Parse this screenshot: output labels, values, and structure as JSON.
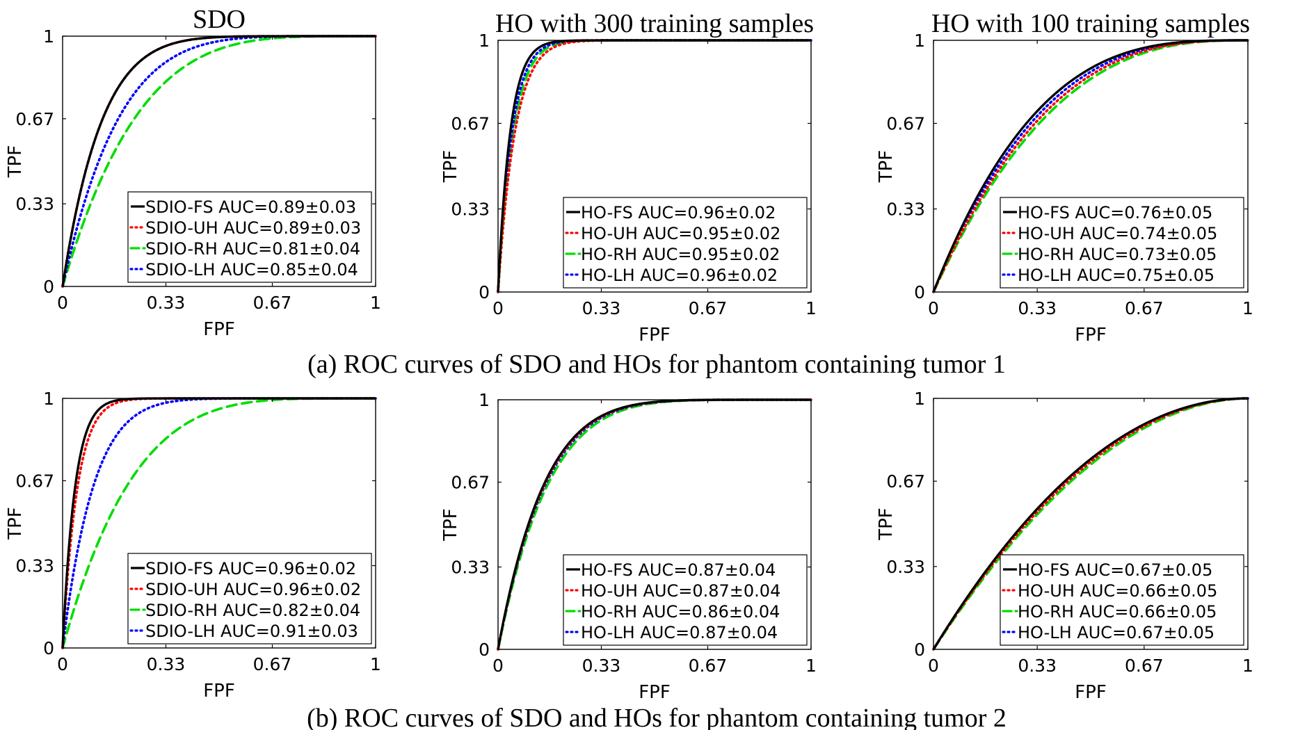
{
  "captions": [
    "(a) ROC curves of SDO and HOs for phantom containing tumor 1",
    "(b) ROC curves of SDO and HOs for phantom containing tumor 2"
  ],
  "series_styles": {
    "FS": {
      "color": "#000000",
      "dash": "none"
    },
    "UH": {
      "color": "#ff0000",
      "dash": "2,5"
    },
    "RH": {
      "color": "#00dd00",
      "dash": "14,8"
    },
    "LH": {
      "color": "#0000ff",
      "dash": "2,5"
    }
  },
  "chart_data": [
    {
      "type": "line",
      "title": "SDO",
      "xlabel": "FPF",
      "ylabel": "TPF",
      "xlim": [
        0,
        1
      ],
      "ylim": [
        0,
        1
      ],
      "xticks": [
        "0",
        "0.33",
        "0.67",
        "1"
      ],
      "yticks": [
        "0",
        "0.33",
        "0.67",
        "1"
      ],
      "legend_position": "bottom-right",
      "grid": false,
      "series": [
        {
          "name": "SDIO-FS AUC=0.89±0.03",
          "style": "FS",
          "auc": 0.89
        },
        {
          "name": "SDIO-UH AUC=0.89±0.03",
          "style": "UH",
          "auc": 0.89
        },
        {
          "name": "SDIO-RH AUC=0.81±0.04",
          "style": "RH",
          "auc": 0.81
        },
        {
          "name": "SDIO-LH AUC=0.85±0.04",
          "style": "LH",
          "auc": 0.85
        }
      ]
    },
    {
      "type": "line",
      "title": "HO with 300 training samples",
      "xlabel": "FPF",
      "ylabel": "TPF",
      "xlim": [
        0,
        1
      ],
      "ylim": [
        0,
        1
      ],
      "xticks": [
        "0",
        "0.33",
        "0.67",
        "1"
      ],
      "yticks": [
        "0",
        "0.33",
        "0.67",
        "1"
      ],
      "legend_position": "bottom-right",
      "grid": false,
      "series": [
        {
          "name": "HO-FS AUC=0.96±0.02",
          "style": "FS",
          "auc": 0.962
        },
        {
          "name": "HO-UH AUC=0.95±0.02",
          "style": "UH",
          "auc": 0.948
        },
        {
          "name": "HO-RH AUC=0.95±0.02",
          "style": "RH",
          "auc": 0.953
        },
        {
          "name": "HO-LH AUC=0.96±0.02",
          "style": "LH",
          "auc": 0.957
        }
      ]
    },
    {
      "type": "line",
      "title": "HO with 100 training samples",
      "xlabel": "FPF",
      "ylabel": "TPF",
      "xlim": [
        0,
        1
      ],
      "ylim": [
        0,
        1
      ],
      "xticks": [
        "0",
        "0.33",
        "0.67",
        "1"
      ],
      "yticks": [
        "0",
        "0.33",
        "0.67",
        "1"
      ],
      "legend_position": "bottom-right",
      "grid": false,
      "series": [
        {
          "name": "HO-FS AUC=0.76±0.05",
          "style": "FS",
          "auc": 0.76
        },
        {
          "name": "HO-UH AUC=0.74±0.05",
          "style": "UH",
          "auc": 0.74
        },
        {
          "name": "HO-RH AUC=0.73±0.05",
          "style": "RH",
          "auc": 0.73
        },
        {
          "name": "HO-LH AUC=0.75±0.05",
          "style": "LH",
          "auc": 0.75
        }
      ]
    },
    {
      "type": "line",
      "title": "",
      "xlabel": "FPF",
      "ylabel": "TPF",
      "xlim": [
        0,
        1
      ],
      "ylim": [
        0,
        1
      ],
      "xticks": [
        "0",
        "0.33",
        "0.67",
        "1"
      ],
      "yticks": [
        "0",
        "0.33",
        "0.67",
        "1"
      ],
      "legend_position": "bottom-right",
      "grid": false,
      "series": [
        {
          "name": "SDIO-FS AUC=0.96±0.02",
          "style": "FS",
          "auc": 0.962
        },
        {
          "name": "SDIO-UH AUC=0.96±0.02",
          "style": "UH",
          "auc": 0.955
        },
        {
          "name": "SDIO-RH AUC=0.82±0.04",
          "style": "RH",
          "auc": 0.82
        },
        {
          "name": "SDIO-LH AUC=0.91±0.03",
          "style": "LH",
          "auc": 0.91
        }
      ]
    },
    {
      "type": "line",
      "title": "",
      "xlabel": "FPF",
      "ylabel": "TPF",
      "xlim": [
        0,
        1
      ],
      "ylim": [
        0,
        1
      ],
      "xticks": [
        "0",
        "0.33",
        "0.67",
        "1"
      ],
      "yticks": [
        "0",
        "0.33",
        "0.67",
        "1"
      ],
      "legend_position": "bottom-right",
      "grid": false,
      "series": [
        {
          "name": "HO-FS AUC=0.87±0.04",
          "style": "FS",
          "auc": 0.872
        },
        {
          "name": "HO-UH AUC=0.87±0.04",
          "style": "UH",
          "auc": 0.87
        },
        {
          "name": "HO-RH AUC=0.86±0.04",
          "style": "RH",
          "auc": 0.862
        },
        {
          "name": "HO-LH AUC=0.87±0.04",
          "style": "LH",
          "auc": 0.868
        }
      ]
    },
    {
      "type": "line",
      "title": "",
      "xlabel": "FPF",
      "ylabel": "TPF",
      "xlim": [
        0,
        1
      ],
      "ylim": [
        0,
        1
      ],
      "xticks": [
        "0",
        "0.33",
        "0.67",
        "1"
      ],
      "yticks": [
        "0",
        "0.33",
        "0.67",
        "1"
      ],
      "legend_position": "bottom-right",
      "grid": false,
      "series": [
        {
          "name": "HO-FS AUC=0.67±0.05",
          "style": "FS",
          "auc": 0.672
        },
        {
          "name": "HO-UH AUC=0.66±0.05",
          "style": "UH",
          "auc": 0.665
        },
        {
          "name": "HO-RH AUC=0.66±0.05",
          "style": "RH",
          "auc": 0.658
        },
        {
          "name": "HO-LH AUC=0.67±0.05",
          "style": "LH",
          "auc": 0.668
        }
      ]
    }
  ]
}
